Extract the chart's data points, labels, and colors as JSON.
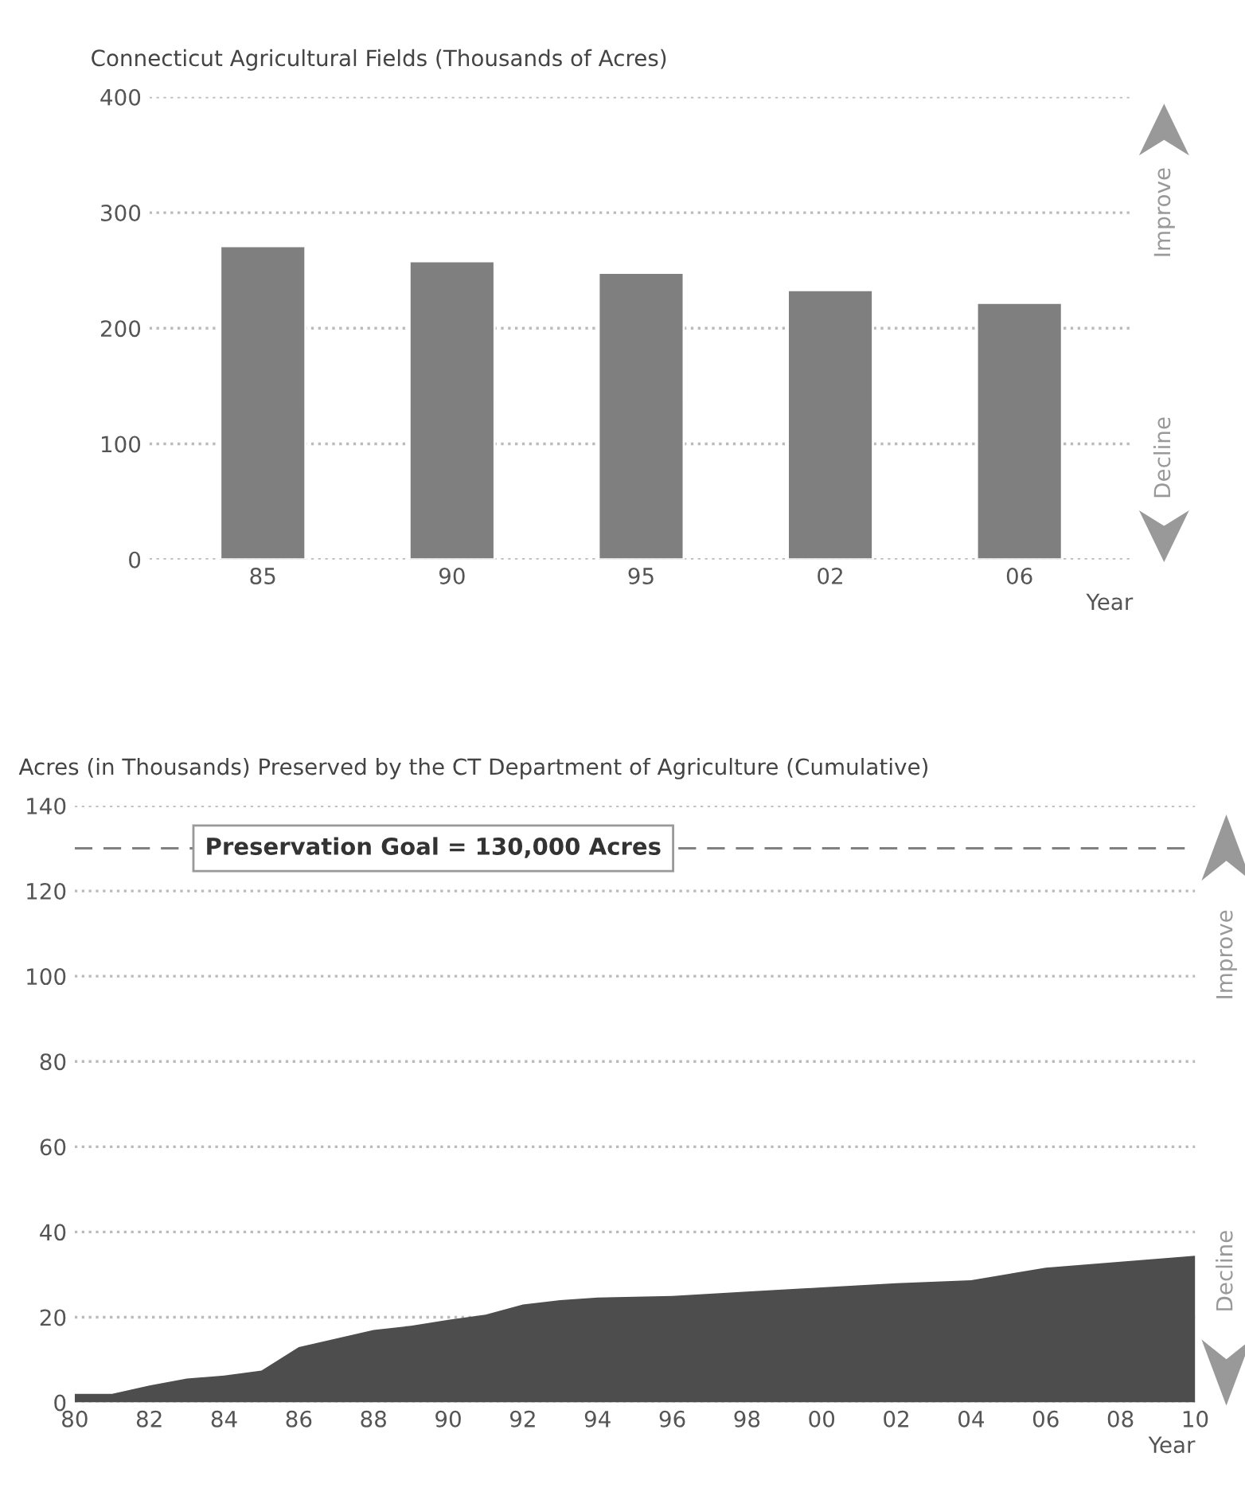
{
  "chart_data": [
    {
      "type": "bar",
      "title": "Connecticut Agricultural Fields (Thousands of Acres)",
      "xlabel": "Year",
      "categories": [
        "85",
        "90",
        "95",
        "02",
        "06"
      ],
      "values": [
        271,
        258,
        248,
        233,
        222
      ],
      "color": "#7f7f7f",
      "ylim": [
        0,
        400
      ],
      "yticks": [
        0,
        100,
        200,
        300,
        400
      ],
      "grid": "y",
      "annotations": [
        "Improve",
        "Decline"
      ]
    },
    {
      "type": "area",
      "title": "Acres (in Thousands) Preserved by the CT Department of Agriculture (Cumulative)",
      "xlabel": "Year",
      "x": [
        1980,
        1981,
        1982,
        1983,
        1984,
        1985,
        1986,
        1987,
        1988,
        1989,
        1990,
        1991,
        1992,
        1993,
        1994,
        1996,
        1998,
        2000,
        2002,
        2004,
        2006,
        2008,
        2010
      ],
      "values": [
        2,
        2,
        4,
        5.6,
        6.3,
        7.5,
        13,
        15,
        17,
        18,
        19.4,
        20.6,
        23,
        24,
        24.6,
        25,
        26,
        27,
        28,
        28.7,
        31.6,
        33,
        34.4
      ],
      "color": "#4d4d4d",
      "xlim": [
        1980,
        2010
      ],
      "xticks": [
        {
          "value": 1980,
          "label": "80"
        },
        {
          "value": 1982,
          "label": "82"
        },
        {
          "value": 1984,
          "label": "84"
        },
        {
          "value": 1986,
          "label": "86"
        },
        {
          "value": 1988,
          "label": "88"
        },
        {
          "value": 1990,
          "label": "90"
        },
        {
          "value": 1992,
          "label": "92"
        },
        {
          "value": 1994,
          "label": "94"
        },
        {
          "value": 1996,
          "label": "96"
        },
        {
          "value": 1998,
          "label": "98"
        },
        {
          "value": 2000,
          "label": "00"
        },
        {
          "value": 2002,
          "label": "02"
        },
        {
          "value": 2004,
          "label": "04"
        },
        {
          "value": 2006,
          "label": "06"
        },
        {
          "value": 2008,
          "label": "08"
        },
        {
          "value": 2010,
          "label": "10"
        }
      ],
      "ylim": [
        0,
        140
      ],
      "yticks": [
        0,
        20,
        40,
        60,
        80,
        100,
        120,
        140
      ],
      "grid": "y",
      "ref_lines": [
        {
          "axis": "y",
          "value": 130,
          "label": "Preservation Goal = 130,000 Acres",
          "line_style": "dashed",
          "color": "#808080"
        }
      ],
      "annotations": [
        "Improve",
        "Decline"
      ]
    }
  ]
}
